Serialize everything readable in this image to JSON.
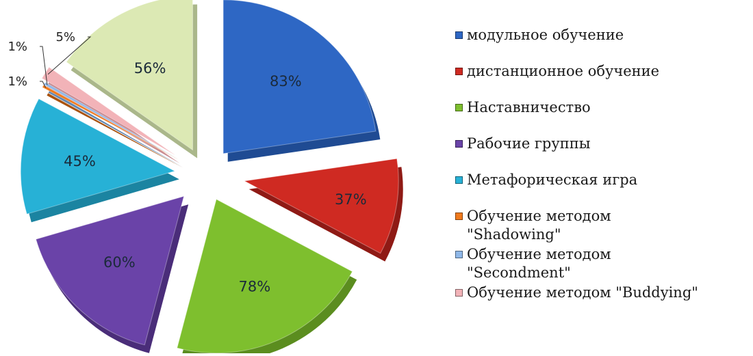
{
  "chart_data": {
    "type": "pie",
    "style": "3d-exploded",
    "slices": [
      {
        "name": "модульное обучение",
        "value": 83,
        "label": "83%",
        "color": "#2e67c4",
        "side": "#1f4b93"
      },
      {
        "name": "дистанционное обучение",
        "value": 37,
        "label": "37%",
        "color": "#cf2a22",
        "side": "#8f1a15"
      },
      {
        "name": "Наставничество",
        "value": 78,
        "label": "78%",
        "color": "#7ebf2e",
        "side": "#5b8d1f"
      },
      {
        "name": "Рабочие группы",
        "value": 60,
        "label": "60%",
        "color": "#6a43a8",
        "side": "#4a2d79"
      },
      {
        "name": "Метафорическая игра",
        "value": 45,
        "label": "45%",
        "color": "#27b1d6",
        "side": "#1b84a1"
      },
      {
        "name": "Обучение методом\n\"Shadowing\"",
        "value": 1,
        "label": "1%",
        "color": "#f07a1c",
        "side": "#a9530f"
      },
      {
        "name": "Обучение методом\n\"Secondment\"",
        "value": 1,
        "label": "1%",
        "color": "#8fb8e8",
        "side": "#6388b2"
      },
      {
        "name": "Обучение методом \"Buddying\"",
        "value": 5,
        "label": "5%",
        "color": "#f2b3b8",
        "side": "#c98a90"
      },
      {
        "name": "",
        "value": 56,
        "label": "56%",
        "color": "#dce9b4",
        "side": "#aab78a"
      }
    ],
    "legend_position": "right"
  }
}
